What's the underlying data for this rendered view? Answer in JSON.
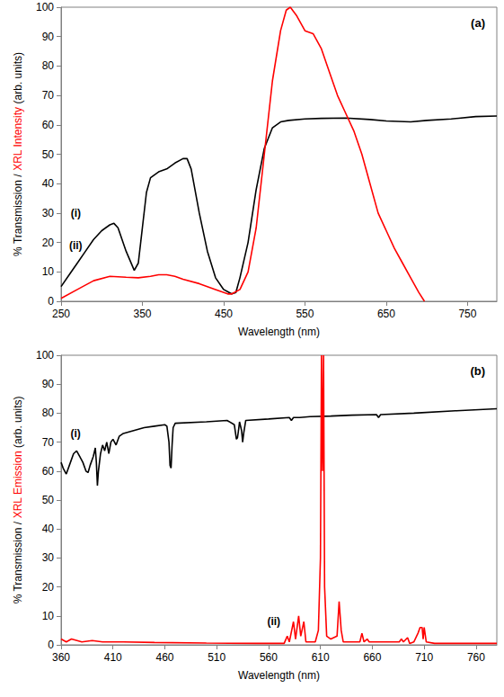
{
  "chart_data": [
    {
      "type": "line",
      "title": "(a)",
      "xlabel": "Wavelength (nm)",
      "ylabel": [
        {
          "text": "% Transmission / ",
          "color": "#000000"
        },
        {
          "text": "XRL Intensity",
          "color": "#ff0000"
        },
        {
          "text": " (arb. units)",
          "color": "#000000"
        }
      ],
      "xlim": [
        250,
        786
      ],
      "xticks": [
        250,
        350,
        450,
        550,
        650,
        750
      ],
      "ylim": [
        0,
        100
      ],
      "yticks": [
        0,
        10,
        20,
        30,
        40,
        50,
        60,
        70,
        80,
        90,
        100
      ],
      "grid": false,
      "annotations": [
        {
          "text": "(i)",
          "x": 268,
          "y": 30
        },
        {
          "text": "(ii)",
          "x": 268,
          "y": 19
        }
      ],
      "series": [
        {
          "name": "(i)",
          "color": "#000000",
          "x": [
            250,
            260,
            270,
            280,
            290,
            300,
            310,
            315,
            320,
            330,
            340,
            345,
            350,
            355,
            360,
            370,
            380,
            390,
            400,
            405,
            410,
            420,
            430,
            440,
            450,
            460,
            465,
            470,
            480,
            490,
            500,
            510,
            520,
            530,
            550,
            570,
            600,
            630,
            650,
            680,
            700,
            730,
            760,
            786
          ],
          "values": [
            5,
            9,
            13,
            17,
            21,
            24,
            26,
            26.5,
            25,
            17,
            10.5,
            13,
            25,
            37,
            42,
            44,
            45,
            47,
            48.5,
            48.5,
            45,
            30,
            17,
            8,
            4,
            2.5,
            3,
            8,
            20,
            38,
            52,
            59,
            61,
            61.5,
            62,
            62.2,
            62.3,
            61.8,
            61.3,
            61,
            61.5,
            62,
            62.8,
            63
          ]
        },
        {
          "name": "(ii)",
          "color": "#ff0000",
          "x": [
            250,
            270,
            290,
            310,
            330,
            345,
            360,
            370,
            380,
            390,
            400,
            420,
            440,
            455,
            460,
            470,
            480,
            490,
            500,
            510,
            520,
            527,
            532,
            540,
            550,
            560,
            570,
            580,
            590,
            600,
            610,
            620,
            630,
            640,
            650,
            660,
            670,
            680,
            690,
            697
          ],
          "values": [
            1,
            4,
            7,
            8.5,
            8.2,
            8,
            8.5,
            9,
            9,
            8.5,
            7.5,
            6,
            4,
            2.5,
            2.5,
            4,
            10,
            25,
            50,
            75,
            92,
            99,
            100,
            97,
            92,
            91,
            86,
            78,
            70,
            64,
            58,
            50,
            40,
            30,
            24,
            18,
            13,
            8,
            3,
            0
          ]
        }
      ]
    },
    {
      "type": "line",
      "title": "(b)",
      "xlabel": "Wavelength (nm)",
      "ylabel": [
        {
          "text": "% Transmission / ",
          "color": "#000000"
        },
        {
          "text": "XRL Emission",
          "color": "#ff0000"
        },
        {
          "text": " (arb. units)",
          "color": "#000000"
        }
      ],
      "xlim": [
        360,
        780
      ],
      "xticks": [
        360,
        410,
        460,
        510,
        560,
        610,
        660,
        710,
        760
      ],
      "ylim": [
        0,
        100
      ],
      "yticks": [
        0,
        10,
        20,
        30,
        40,
        50,
        60,
        70,
        80,
        90,
        100
      ],
      "grid": false,
      "annotations": [
        {
          "text": "(i)",
          "x": 374,
          "y": 73
        },
        {
          "text": "(ii)",
          "x": 565,
          "y": 8
        }
      ],
      "series": [
        {
          "name": "(i)",
          "color": "#000000",
          "x": [
            360,
            362,
            365,
            368,
            372,
            375,
            378,
            381,
            384,
            386,
            388,
            391,
            393,
            394,
            395,
            396,
            398,
            400,
            402,
            404,
            406,
            408,
            410,
            413,
            416,
            420,
            430,
            440,
            450,
            460,
            462,
            464,
            465,
            466,
            467,
            468,
            470,
            500,
            520,
            527,
            529,
            530,
            531,
            532,
            534,
            535,
            536,
            538,
            560,
            580,
            582,
            584,
            590,
            600,
            620,
            640,
            664,
            666,
            668,
            700,
            740,
            780
          ],
          "values": [
            63,
            61,
            59,
            62,
            66,
            67,
            65,
            63,
            60,
            59.5,
            62,
            65,
            68,
            63,
            55,
            60,
            66,
            69,
            67,
            70,
            66,
            70,
            71,
            69,
            72,
            73,
            74,
            75,
            75.5,
            76,
            75.5,
            70,
            62,
            61,
            69,
            75,
            76.5,
            77,
            77.5,
            76,
            71,
            71.5,
            74,
            77,
            74,
            70,
            73,
            77.5,
            78,
            78.5,
            77.5,
            78.5,
            78.5,
            78.8,
            79,
            79.3,
            79.5,
            78.5,
            79.5,
            80,
            80.8,
            81.5
          ]
        },
        {
          "name": "(ii)",
          "color": "#ff0000",
          "x": [
            360,
            365,
            370,
            380,
            390,
            400,
            420,
            450,
            500,
            550,
            575,
            578,
            580,
            584,
            586,
            589,
            591,
            594,
            596,
            598,
            605,
            608,
            610,
            611,
            612,
            613,
            614,
            616,
            620,
            626,
            628,
            630,
            632,
            640,
            648,
            650,
            652,
            655,
            657,
            670,
            686,
            688,
            690,
            694,
            696,
            700,
            704,
            706,
            708,
            709,
            710,
            712,
            720,
            780
          ],
          "values": [
            2,
            1,
            2,
            1,
            1.5,
            1,
            1,
            0.8,
            0.6,
            0.5,
            0.5,
            3,
            1,
            8,
            2,
            10,
            3,
            8,
            1,
            1,
            1,
            5,
            30,
            100,
            60,
            100,
            20,
            3,
            2,
            3,
            15,
            5,
            1,
            1,
            1,
            4,
            1,
            2,
            1,
            1,
            1,
            2,
            1,
            2.5,
            0.5,
            1,
            4,
            6,
            6,
            2,
            6,
            1,
            0.5,
            0.5
          ]
        }
      ]
    }
  ]
}
